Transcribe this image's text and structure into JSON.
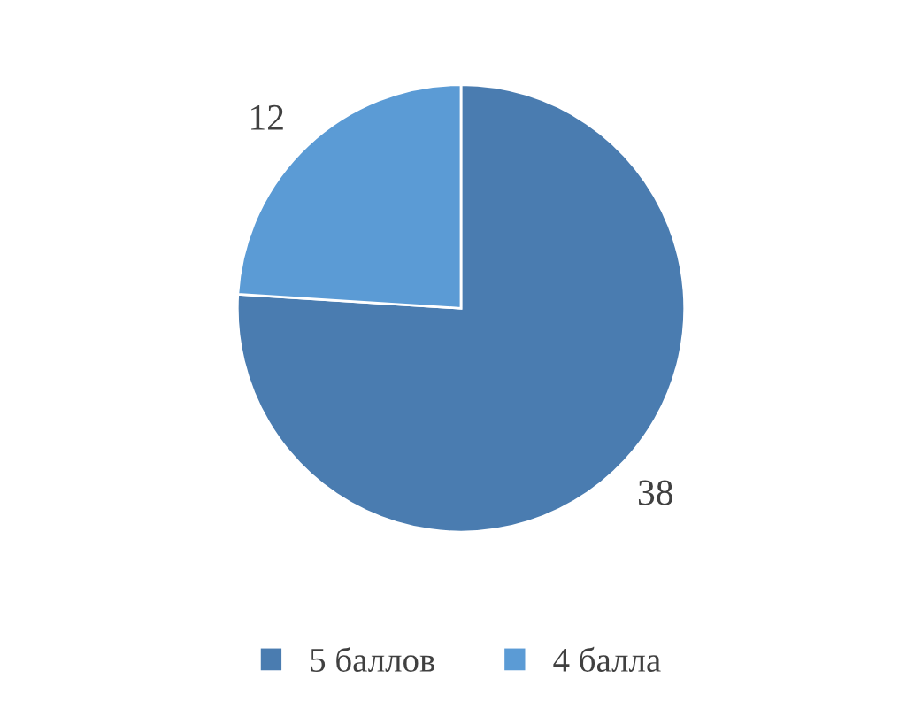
{
  "chart_data": {
    "type": "pie",
    "categories": [
      "5 баллов",
      "4 балла"
    ],
    "values": [
      38,
      12
    ],
    "colors": [
      "#4a7cb0",
      "#5b9bd5"
    ],
    "data_labels": true,
    "legend": "bottom"
  }
}
